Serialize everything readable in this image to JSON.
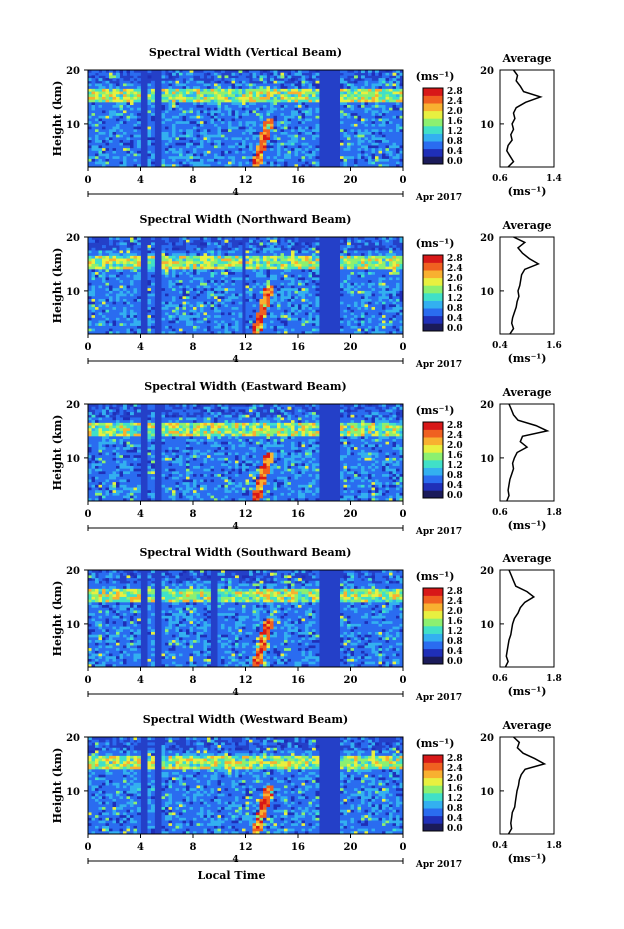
{
  "figure": {
    "date_label": "Apr 2017",
    "bottom_xlabel": "Local Time",
    "axis_marker": "4"
  },
  "colorbar": {
    "unit_label": "(ms⁻¹)",
    "ticks": [
      "2.8",
      "2.4",
      "2.0",
      "1.6",
      "1.2",
      "0.8",
      "0.4",
      "0.0"
    ],
    "colors": [
      "#1b1b5a",
      "#1f2fb8",
      "#2a6cf0",
      "#33b0f0",
      "#40e0c8",
      "#8cf070",
      "#e8f040",
      "#f8b030",
      "#f06020",
      "#d81818"
    ]
  },
  "chart_data": [
    {
      "type": "heatmap",
      "title": "Spectral Width (Vertical Beam)",
      "xlabel": "",
      "ylabel": "Height (km)",
      "xlim": [
        0,
        24
      ],
      "ylim": [
        2,
        20
      ],
      "xticks": [
        "0",
        "4",
        "8",
        "12",
        "16",
        "20",
        "0"
      ],
      "yticks": [
        "20",
        "10"
      ],
      "colorbar_label": "(ms⁻¹)",
      "zlim": [
        0.0,
        3.0
      ],
      "data_gaps_hours": [
        [
          4.0,
          4.5
        ],
        [
          5.0,
          5.5
        ],
        [
          17.5,
          19.2
        ]
      ],
      "profile": {
        "title": "Average",
        "xlabel": "(ms⁻¹)",
        "xlim": [
          0.6,
          1.4
        ],
        "xticks": [
          "0.6",
          "1.4"
        ],
        "yticks": [
          "20",
          "10"
        ],
        "height_km": [
          2,
          3,
          4,
          5,
          6,
          7,
          8,
          9,
          10,
          11,
          12,
          13,
          14,
          15,
          16,
          17,
          18,
          19,
          20
        ],
        "value": [
          0.72,
          0.8,
          0.75,
          0.7,
          0.72,
          0.78,
          0.76,
          0.8,
          0.78,
          0.82,
          0.8,
          0.84,
          0.98,
          1.2,
          0.95,
          0.9,
          0.84,
          0.86,
          0.8
        ]
      }
    },
    {
      "type": "heatmap",
      "title": "Spectral Width (Northward Beam)",
      "xlabel": "",
      "ylabel": "Height (km)",
      "xlim": [
        0,
        24
      ],
      "ylim": [
        2,
        20
      ],
      "xticks": [
        "0",
        "4",
        "8",
        "12",
        "16",
        "20",
        "0"
      ],
      "yticks": [
        "20",
        "10"
      ],
      "colorbar_label": "(ms⁻¹)",
      "zlim": [
        0.0,
        3.0
      ],
      "data_gaps_hours": [
        [
          4.0,
          4.5
        ],
        [
          5.0,
          5.5
        ],
        [
          11.8,
          12.1
        ],
        [
          17.5,
          19.2
        ]
      ],
      "profile": {
        "title": "Average",
        "xlabel": "(ms⁻¹)",
        "xlim": [
          0.4,
          1.6
        ],
        "xticks": [
          "0.4",
          "1.6"
        ],
        "yticks": [
          "20",
          "10"
        ],
        "height_km": [
          2,
          3,
          4,
          5,
          6,
          7,
          8,
          9,
          10,
          11,
          12,
          13,
          14,
          15,
          16,
          17,
          18,
          19,
          20
        ],
        "value": [
          0.62,
          0.7,
          0.66,
          0.68,
          0.72,
          0.76,
          0.78,
          0.82,
          0.8,
          0.84,
          0.86,
          0.88,
          0.95,
          1.25,
          1.05,
          0.9,
          0.8,
          0.95,
          0.7
        ]
      }
    },
    {
      "type": "heatmap",
      "title": "Spectral Width (Eastward Beam)",
      "xlabel": "",
      "ylabel": "Height (km)",
      "xlim": [
        0,
        24
      ],
      "ylim": [
        2,
        20
      ],
      "xticks": [
        "0",
        "4",
        "8",
        "12",
        "16",
        "20",
        "0"
      ],
      "yticks": [
        "20",
        "10"
      ],
      "colorbar_label": "(ms⁻¹)",
      "zlim": [
        0.0,
        3.0
      ],
      "data_gaps_hours": [
        [
          4.0,
          4.5
        ],
        [
          5.0,
          5.5
        ],
        [
          17.5,
          19.2
        ]
      ],
      "profile": {
        "title": "Average",
        "xlabel": "(ms⁻¹)",
        "xlim": [
          0.6,
          1.8
        ],
        "xticks": [
          "0.6",
          "1.8"
        ],
        "yticks": [
          "20",
          "10"
        ],
        "height_km": [
          2,
          3,
          4,
          5,
          6,
          7,
          8,
          9,
          10,
          11,
          12,
          13,
          14,
          15,
          16,
          17,
          18,
          19,
          20
        ],
        "value": [
          0.75,
          0.8,
          0.78,
          0.8,
          0.82,
          0.86,
          0.9,
          0.88,
          0.92,
          0.98,
          1.2,
          1.05,
          1.1,
          1.65,
          1.4,
          1.0,
          0.9,
          0.85,
          0.8
        ]
      }
    },
    {
      "type": "heatmap",
      "title": "Spectral Width (Southward Beam)",
      "xlabel": "",
      "ylabel": "Height (km)",
      "xlim": [
        0,
        24
      ],
      "ylim": [
        2,
        20
      ],
      "xticks": [
        "0",
        "4",
        "8",
        "12",
        "16",
        "20",
        "0"
      ],
      "yticks": [
        "20",
        "10"
      ],
      "colorbar_label": "(ms⁻¹)",
      "zlim": [
        0.0,
        3.0
      ],
      "data_gaps_hours": [
        [
          4.0,
          4.5
        ],
        [
          5.0,
          5.5
        ],
        [
          9.3,
          9.8
        ],
        [
          17.5,
          19.2
        ]
      ],
      "profile": {
        "title": "Average",
        "xlabel": "(ms⁻¹)",
        "xlim": [
          0.6,
          1.8
        ],
        "xticks": [
          "0.6",
          "1.8"
        ],
        "yticks": [
          "20",
          "10"
        ],
        "height_km": [
          2,
          3,
          4,
          5,
          6,
          7,
          8,
          9,
          10,
          11,
          12,
          13,
          14,
          15,
          16,
          17,
          18,
          19,
          20
        ],
        "value": [
          0.72,
          0.78,
          0.74,
          0.76,
          0.78,
          0.8,
          0.84,
          0.86,
          0.88,
          0.92,
          1.0,
          1.05,
          1.15,
          1.35,
          1.2,
          0.95,
          0.9,
          0.85,
          0.8
        ]
      }
    },
    {
      "type": "heatmap",
      "title": "Spectral Width (Westward Beam)",
      "xlabel": "Local Time",
      "ylabel": "Height (km)",
      "xlim": [
        0,
        24
      ],
      "ylim": [
        2,
        20
      ],
      "xticks": [
        "0",
        "4",
        "8",
        "12",
        "16",
        "20",
        "0"
      ],
      "yticks": [
        "20",
        "10"
      ],
      "colorbar_label": "(ms⁻¹)",
      "zlim": [
        0.0,
        3.0
      ],
      "data_gaps_hours": [
        [
          4.0,
          4.5
        ],
        [
          5.0,
          5.5
        ],
        [
          17.5,
          19.2
        ]
      ],
      "profile": {
        "title": "Average",
        "xlabel": "(ms⁻¹)",
        "xlim": [
          0.4,
          1.8
        ],
        "xticks": [
          "0.4",
          "1.8"
        ],
        "yticks": [
          "20",
          "10"
        ],
        "height_km": [
          2,
          3,
          4,
          5,
          6,
          7,
          8,
          9,
          10,
          11,
          12,
          13,
          14,
          15,
          16,
          17,
          18,
          19,
          20
        ],
        "value": [
          0.62,
          0.7,
          0.68,
          0.7,
          0.72,
          0.78,
          0.8,
          0.82,
          0.84,
          0.88,
          0.9,
          0.95,
          1.05,
          1.55,
          1.3,
          1.0,
          0.85,
          0.9,
          0.75
        ]
      }
    }
  ]
}
